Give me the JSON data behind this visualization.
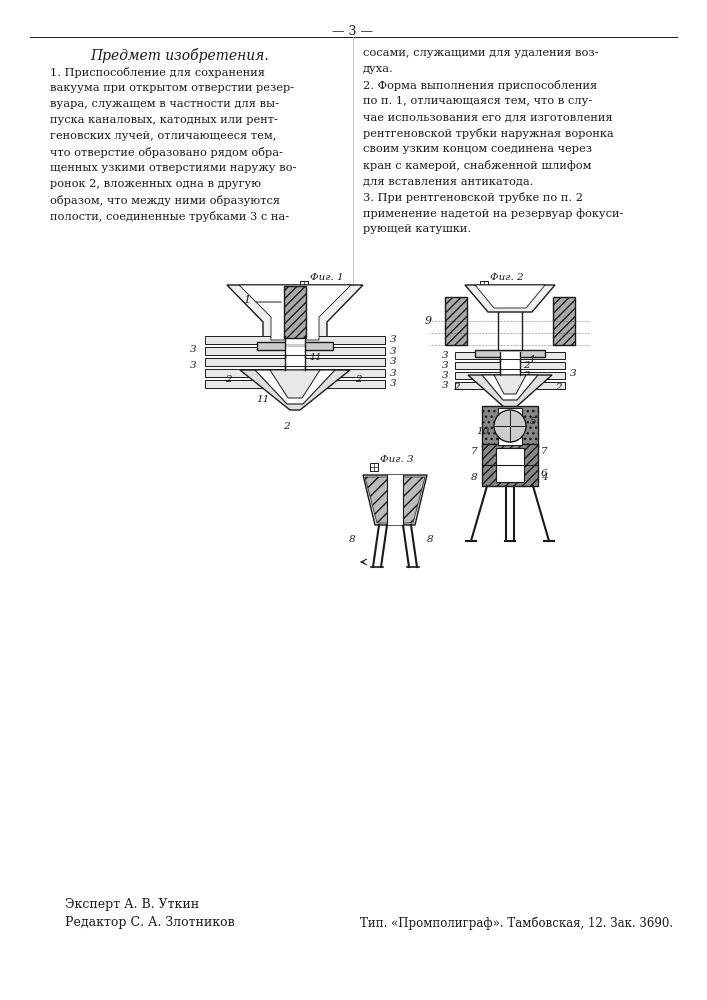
{
  "background_color": "#ffffff",
  "text_color": "#1a1a1a",
  "title": "Предмет изобретения.",
  "left_col": [
    "1. Приспособление для сохранения",
    "вакуума при открытом отверстии резер-",
    "вуара, служащем в частности для вы-",
    "пуска каналовых, катодных или рент-",
    "геновских лучей, отличающееся тем,",
    "что отверстие образовано рядом обра-",
    "щенных узкими отверстиями наружу во-",
    "ронок 2, вложенных одна в другую",
    "образом, что между ними образуются",
    "полости, соединенные трубками 3 с на-"
  ],
  "right_col": [
    "сосами, служащими для удаления воз-",
    "духа.",
    "2. Форма выполнения приспособления",
    "по п. 1, отличающаяся тем, что в слу-",
    "чае использования его для изготовления",
    "рентгеновской трубки наружная воронка",
    "своим узким концом соединена через",
    "кран с камерой, снабженной шлифом",
    "для вставления антикатода.",
    "3. При рентгеновской трубке по п. 2",
    "применение надетой на резервуар фокуси-",
    "рующей катушки."
  ],
  "expert_text": "Эксперт А. В. Уткин",
  "editor_text": "Редактор С. А. Злотников",
  "publisher_text": "Тип. «Промполиграф». Тамбовская, 12. Зак. 3690.",
  "fig1_label": "Фиг. 1",
  "fig2_label": "Фиг. 2",
  "fig3_label": "Фиг. 3"
}
